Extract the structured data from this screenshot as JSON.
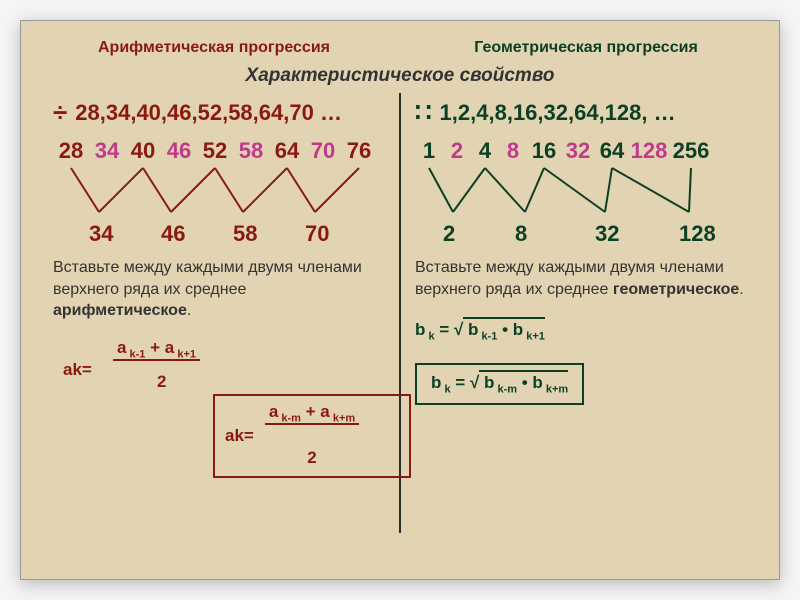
{
  "title_left": "Арифметическая прогрессия",
  "title_right": "Геометрическая прогрессия",
  "subtitle": "Характеристическое свойство",
  "arith": {
    "symbol": "÷",
    "seq": "28,34,40,46,52,58,64,70  …",
    "top": [
      "28",
      "34",
      "40",
      "46",
      "52",
      "58",
      "64",
      "70",
      "76"
    ],
    "bottom": [
      "34",
      "46",
      "58",
      "70"
    ],
    "desc": "Вставьте между каждыми двумя членами верхнего ряда их среднее арифметическое.",
    "f1_num": "a k-1 + a k+1",
    "f1_ak": "ak=",
    "f1_den": "2",
    "f2_num": "a k-m + a k+m",
    "f2_ak": "ak=",
    "f2_den": "2",
    "color": "#8a1a10",
    "alt_color": "#c03a8a"
  },
  "geom": {
    "symbol": "∷",
    "seq": "1,2,4,8,16,32,64,128, …",
    "top": [
      "1",
      "2",
      "4",
      "8",
      "16",
      "32",
      "64",
      "128",
      "256"
    ],
    "bottom": [
      "2",
      "8",
      "32",
      "128"
    ],
    "desc": "Вставьте между каждыми двумя членами верхнего ряда их среднее геометрическое.",
    "f1": "b k = √",
    "f1_root": " b k-1 • b k+1",
    "f2": "b k = √",
    "f2_root": " b k-m • b k+m",
    "color": "#0c3f23",
    "alt_color": "#c03a8a"
  },
  "layout": {
    "card_bg": "#e2d4b2",
    "zig_h": 50,
    "left_top_w": [
      36,
      36,
      36,
      36,
      36,
      36,
      36,
      36,
      36
    ],
    "left_bot_pos": [
      36,
      108,
      180,
      252
    ],
    "right_top_w": [
      28,
      28,
      28,
      28,
      34,
      34,
      34,
      40,
      44
    ],
    "right_bot_pos": [
      28,
      100,
      180,
      264
    ]
  }
}
